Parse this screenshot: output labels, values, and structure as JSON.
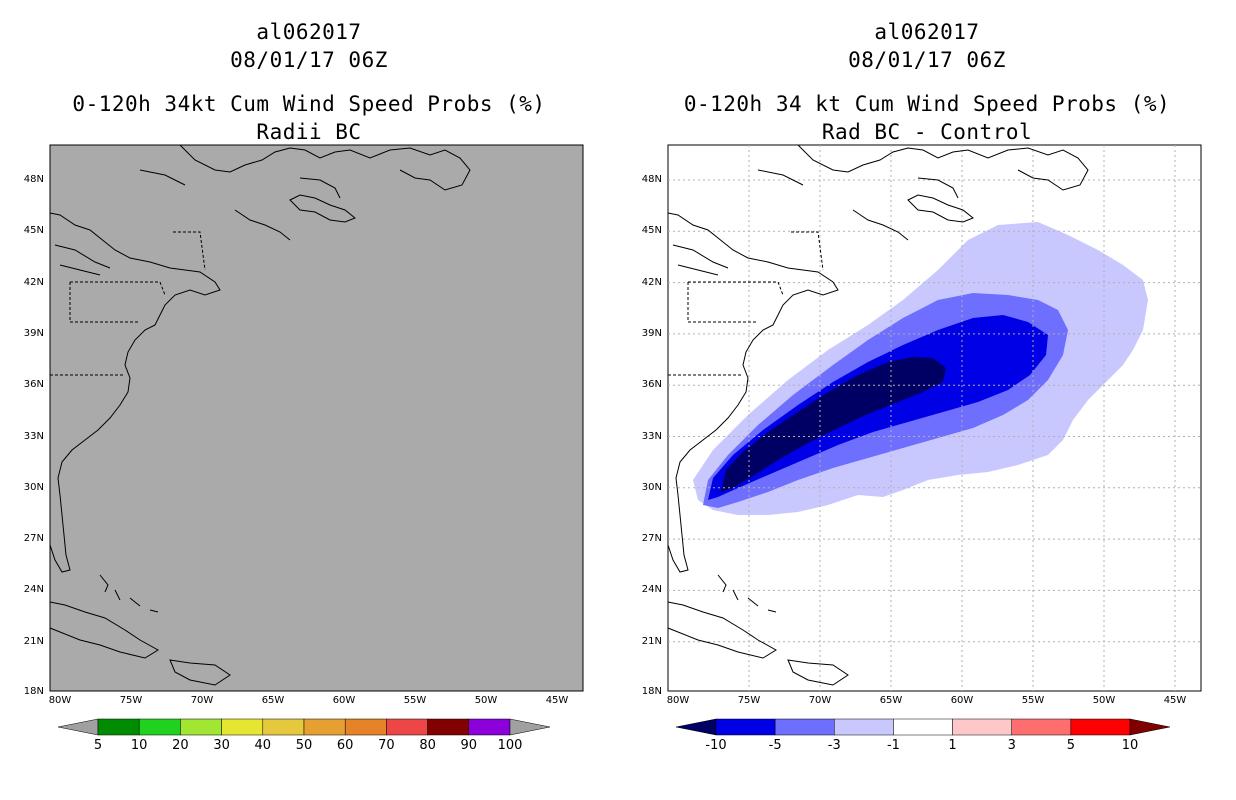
{
  "left_panel": {
    "storm_id": "al062017",
    "datetime": "08/01/17 06Z",
    "product": "0-120h 34kt Cum Wind Speed Probs (%)",
    "subtitle": "Radii BC",
    "colorbar": {
      "labels": [
        "5",
        "10",
        "20",
        "30",
        "40",
        "50",
        "60",
        "70",
        "80",
        "90",
        "100"
      ],
      "colors": [
        "#a0a0a0",
        "#008c00",
        "#1ed21e",
        "#a0e632",
        "#e6e632",
        "#e6c83c",
        "#e6a032",
        "#e68228",
        "#ec4646",
        "#820000",
        "#8c00dc",
        "#a0a0a0"
      ]
    }
  },
  "right_panel": {
    "storm_id": "al062017",
    "datetime": "08/01/17 06Z",
    "product": "0-120h 34 kt Cum Wind Speed Probs (%)",
    "subtitle": "Rad BC - Control",
    "colorbar": {
      "labels": [
        "-10",
        "-5",
        "-3",
        "-1",
        "1",
        "3",
        "5",
        "10"
      ],
      "colors": [
        "#000064",
        "#0000e6",
        "#6e6eff",
        "#c8c8ff",
        "#ffffff",
        "#ffc8c8",
        "#ff6e6e",
        "#ff0000",
        "#800000"
      ]
    }
  },
  "axes": {
    "lat_labels": [
      "48N",
      "45N",
      "42N",
      "39N",
      "36N",
      "33N",
      "30N",
      "27N",
      "24N",
      "21N",
      "18N"
    ],
    "lon_labels": [
      "80W",
      "75W",
      "70W",
      "65W",
      "60W",
      "55W",
      "50W",
      "45W"
    ]
  },
  "colors": {
    "map_fill_left": "#aaaaaa",
    "coast": "#000000",
    "grid": "#b0b0b0"
  }
}
